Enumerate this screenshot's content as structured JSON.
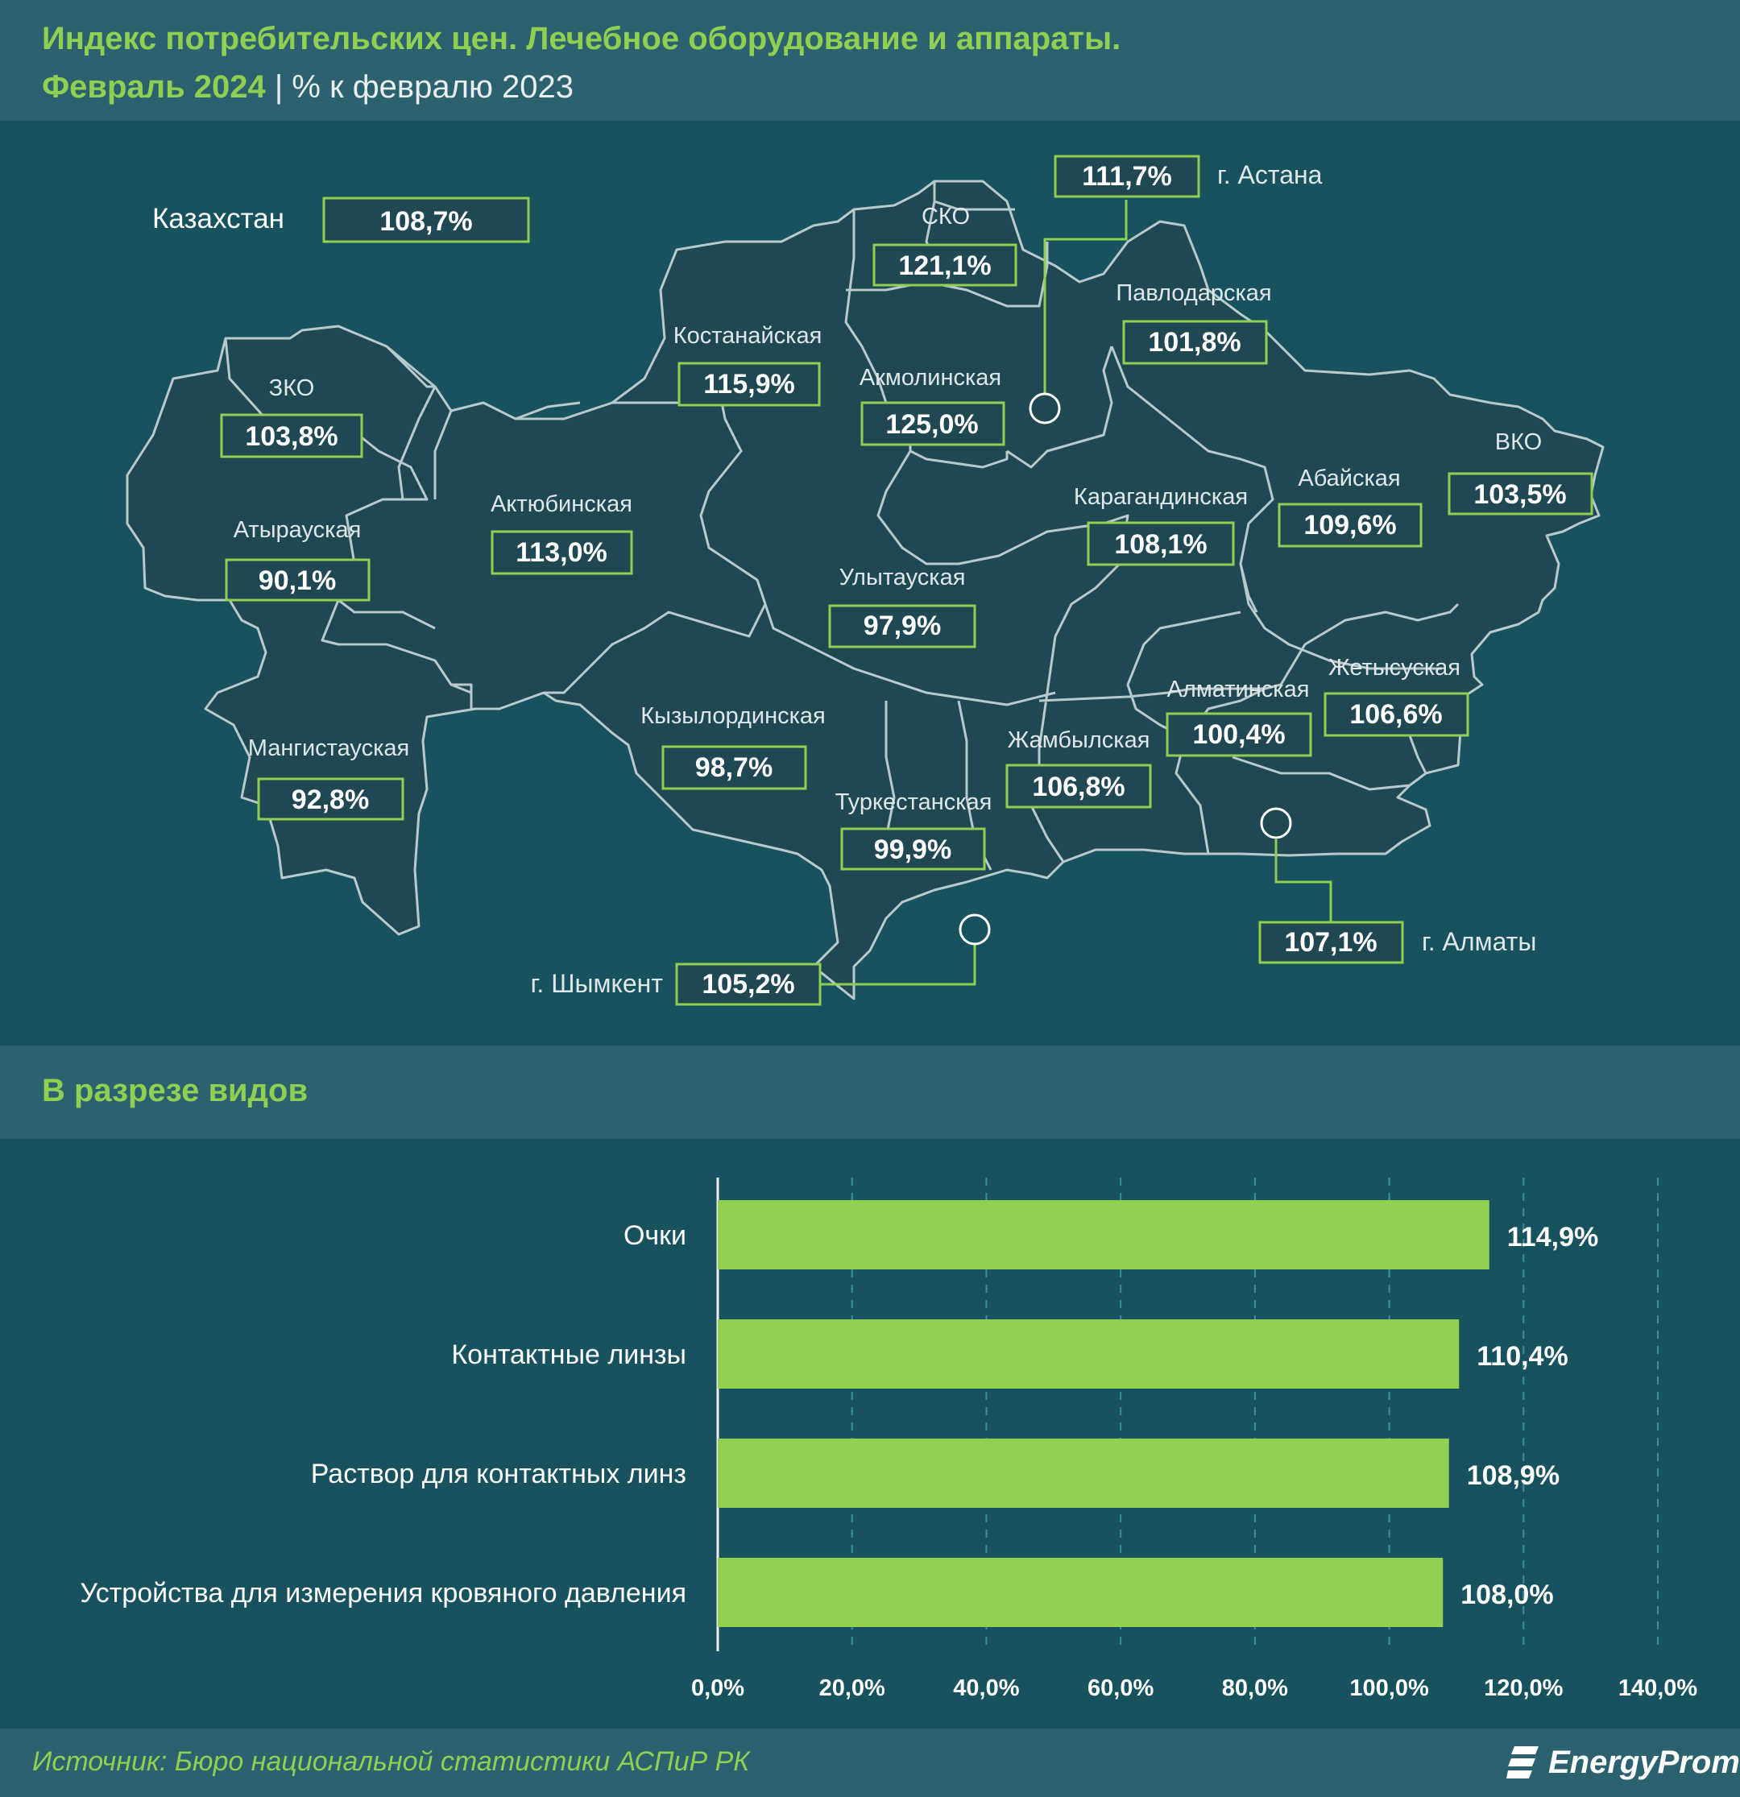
{
  "header": {
    "title": "Индекс потребительских цен. Лечебное оборудование и аппараты.",
    "period": "Февраль 2024",
    "separator": "|",
    "unit": "% к февралю 2023"
  },
  "map": {
    "country": {
      "name": "Казахстан",
      "value": "108,7%"
    },
    "regions": [
      {
        "name": "ЗКО",
        "value": "103,8%"
      },
      {
        "name": "Атырауская",
        "value": "90,1%"
      },
      {
        "name": "Мангистауская",
        "value": "92,8%"
      },
      {
        "name": "Актюбинская",
        "value": "113,0%"
      },
      {
        "name": "Костанайская",
        "value": "115,9%"
      },
      {
        "name": "СКО",
        "value": "121,1%"
      },
      {
        "name": "Акмолинская",
        "value": "125,0%"
      },
      {
        "name": "Павлодарская",
        "value": "101,8%"
      },
      {
        "name": "Карагандинская",
        "value": "108,1%"
      },
      {
        "name": "Абайская",
        "value": "109,6%"
      },
      {
        "name": "ВКО",
        "value": "103,5%"
      },
      {
        "name": "Улытауская",
        "value": "97,9%"
      },
      {
        "name": "Кызылординская",
        "value": "98,7%"
      },
      {
        "name": "Туркестанская",
        "value": "99,9%"
      },
      {
        "name": "Жамбылская",
        "value": "106,8%"
      },
      {
        "name": "Алматинская",
        "value": "100,4%"
      },
      {
        "name": "Жетысуская",
        "value": "106,6%"
      }
    ],
    "cities": [
      {
        "name": "г. Астана",
        "value": "111,7%"
      },
      {
        "name": "г. Алматы",
        "value": "107,1%"
      },
      {
        "name": "г. Шымкент",
        "value": "105,2%"
      }
    ]
  },
  "section": {
    "title": "В разрезе видов"
  },
  "chart_data": {
    "type": "bar",
    "orientation": "horizontal",
    "categories": [
      "Очки",
      "Контактные линзы",
      "Раствор для контактных линз",
      "Устройства для измерения кровяного давления"
    ],
    "values": [
      114.9,
      110.4,
      108.9,
      108.0
    ],
    "value_labels": [
      "114,9%",
      "110,4%",
      "108,9%",
      "108,0%"
    ],
    "xlim": [
      0,
      140
    ],
    "ticks": [
      "0,0%",
      "20,0%",
      "40,0%",
      "60,0%",
      "80,0%",
      "100,0%",
      "120,0%",
      "140,0%"
    ],
    "grid": true,
    "bar_color": "#92d050"
  },
  "footer": {
    "source": "Источник: Бюро национальной статистики АСПиР РК",
    "logo": "EnergyProm"
  },
  "colors": {
    "accent": "#8fcf52",
    "background": "#17525e",
    "band": "#2c6270",
    "region_fill": "#204852"
  }
}
